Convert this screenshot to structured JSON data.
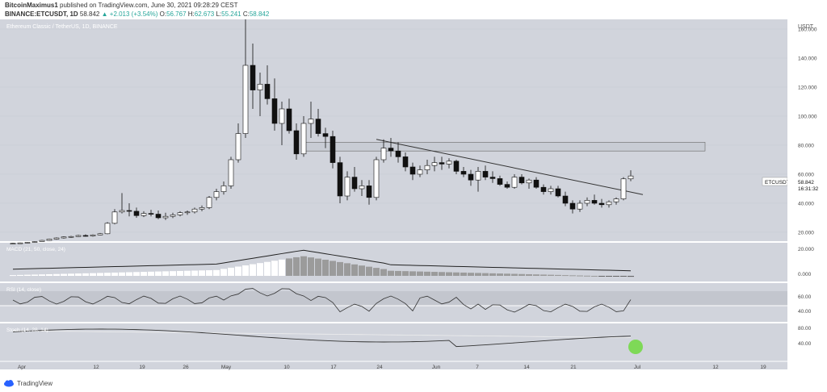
{
  "header": {
    "author": "BitcoinMaximus1",
    "published_text": "published on TradingView.com, June 30, 2021 09:28:29 CEST",
    "symbol_line": "BINANCE:ETCUSDT, 1D",
    "price": "58.842",
    "change": "+2.013 (+3.54%)",
    "o": "56.767",
    "h": "62.673",
    "l": "55.241",
    "c": "58.842"
  },
  "chart_data": {
    "type": "candlestick",
    "title": "Ethereum Classic / TetherUS, 1D, BINANCE",
    "currency": "USDT",
    "y_ticks": [
      "160.000",
      "140.000",
      "120.000",
      "100.000",
      "80.000",
      "60.000",
      "40.000",
      "20.000"
    ],
    "x_ticks": [
      "Apr",
      "12",
      "19",
      "26",
      "May",
      "10",
      "17",
      "24",
      "Jun",
      "7",
      "14",
      "21",
      "Jul",
      "12",
      "19"
    ],
    "last_price_label": {
      "symbol": "ETCUSDT",
      "value": "58.842",
      "countdown": "16:31:32"
    },
    "candles": [
      [
        12.2,
        12.8,
        11.6,
        12.4
      ],
      [
        12.4,
        12.9,
        12.0,
        12.7
      ],
      [
        12.7,
        13.3,
        12.4,
        13.1
      ],
      [
        13.1,
        13.9,
        12.9,
        13.6
      ],
      [
        13.6,
        14.8,
        13.4,
        14.4
      ],
      [
        14.4,
        15.6,
        14.1,
        15.3
      ],
      [
        15.3,
        16.5,
        14.9,
        16.1
      ],
      [
        16.1,
        17.2,
        15.6,
        16.8
      ],
      [
        16.8,
        17.6,
        16.2,
        17.1
      ],
      [
        17.1,
        18.3,
        16.8,
        17.8
      ],
      [
        17.8,
        18.6,
        17.0,
        17.5
      ],
      [
        17.5,
        18.6,
        17.0,
        18.2
      ],
      [
        18.2,
        19.5,
        17.9,
        19.0
      ],
      [
        19.0,
        27.0,
        18.7,
        26.2
      ],
      [
        26.2,
        36.0,
        25.5,
        34.0
      ],
      [
        34.0,
        47.0,
        33.0,
        35.0
      ],
      [
        35.0,
        40.0,
        31.0,
        34.5
      ],
      [
        34.5,
        37.0,
        30.0,
        31.5
      ],
      [
        31.5,
        34.5,
        30.5,
        33.0
      ],
      [
        33.0,
        35.5,
        31.0,
        32.5
      ],
      [
        32.5,
        35.0,
        29.0,
        30.0
      ],
      [
        30.0,
        33.5,
        28.5,
        31.0
      ],
      [
        31.0,
        33.5,
        29.8,
        32.0
      ],
      [
        32.0,
        34.5,
        31.0,
        33.5
      ],
      [
        33.5,
        35.0,
        32.0,
        34.0
      ],
      [
        34.0,
        37.0,
        33.0,
        36.0
      ],
      [
        36.0,
        38.5,
        34.5,
        37.0
      ],
      [
        37.0,
        45.0,
        36.0,
        44.0
      ],
      [
        44.0,
        50.0,
        42.0,
        48.0
      ],
      [
        48.0,
        55.0,
        46.0,
        52.0
      ],
      [
        52.0,
        72.0,
        50.0,
        70.0
      ],
      [
        70.0,
        95.0,
        68.0,
        88.0
      ],
      [
        88.0,
        179.0,
        85.0,
        135.0
      ],
      [
        135.0,
        150.0,
        105.0,
        118.0
      ],
      [
        118.0,
        130.0,
        100.0,
        122.0
      ],
      [
        122.0,
        135.0,
        108.0,
        112.0
      ],
      [
        112.0,
        126.0,
        90.0,
        95.0
      ],
      [
        95.0,
        110.0,
        80.0,
        105.0
      ],
      [
        105.0,
        112.0,
        88.0,
        90.0
      ],
      [
        90.0,
        95.0,
        70.0,
        74.0
      ],
      [
        74.0,
        100.0,
        72.0,
        95.0
      ],
      [
        95.0,
        110.0,
        85.0,
        98.0
      ],
      [
        98.0,
        105.0,
        86.0,
        88.0
      ],
      [
        88.0,
        92.0,
        78.0,
        86.0
      ],
      [
        86.0,
        90.0,
        64.0,
        68.0
      ],
      [
        68.0,
        72.0,
        40.0,
        45.0
      ],
      [
        45.0,
        62.0,
        42.0,
        58.0
      ],
      [
        58.0,
        65.0,
        48.0,
        50.0
      ],
      [
        50.0,
        56.0,
        45.0,
        52.0
      ],
      [
        52.0,
        56.0,
        39.0,
        44.0
      ],
      [
        44.0,
        72.0,
        42.0,
        70.0
      ],
      [
        70.0,
        84.0,
        68.0,
        78.0
      ],
      [
        78.0,
        85.0,
        72.0,
        76.0
      ],
      [
        76.0,
        82.0,
        68.0,
        72.0
      ],
      [
        72.0,
        75.0,
        62.0,
        65.0
      ],
      [
        65.0,
        68.0,
        56.0,
        60.0
      ],
      [
        60.0,
        66.0,
        58.0,
        63.0
      ],
      [
        63.0,
        70.0,
        60.0,
        66.0
      ],
      [
        66.0,
        72.0,
        62.0,
        68.0
      ],
      [
        68.0,
        72.0,
        63.0,
        67.0
      ],
      [
        67.0,
        71.0,
        64.0,
        69.0
      ],
      [
        69.0,
        70.0,
        60.0,
        62.0
      ],
      [
        62.0,
        65.0,
        58.0,
        60.0
      ],
      [
        60.0,
        63.0,
        52.0,
        56.0
      ],
      [
        56.0,
        65.0,
        48.0,
        62.0
      ],
      [
        62.0,
        66.0,
        56.0,
        58.0
      ],
      [
        58.0,
        62.0,
        54.0,
        57.0
      ],
      [
        57.0,
        59.0,
        52.0,
        53.0
      ],
      [
        53.0,
        55.0,
        50.0,
        51.0
      ],
      [
        51.0,
        60.0,
        50.0,
        58.0
      ],
      [
        58.0,
        60.0,
        53.0,
        54.0
      ],
      [
        54.0,
        57.0,
        50.0,
        56.0
      ],
      [
        56.0,
        58.0,
        50.0,
        51.0
      ],
      [
        51.0,
        53.0,
        46.0,
        48.0
      ],
      [
        48.0,
        52.0,
        46.0,
        50.0
      ],
      [
        50.0,
        52.0,
        44.0,
        45.0
      ],
      [
        45.0,
        48.0,
        38.0,
        40.0
      ],
      [
        40.0,
        42.0,
        33.0,
        36.0
      ],
      [
        36.0,
        42.0,
        34.0,
        40.0
      ],
      [
        40.0,
        44.0,
        38.0,
        42.0
      ],
      [
        42.0,
        46.0,
        39.0,
        40.0
      ],
      [
        40.0,
        43.0,
        37.0,
        39.0
      ],
      [
        39.0,
        42.0,
        37.0,
        41.0
      ],
      [
        41.0,
        44.0,
        39.0,
        43.0
      ],
      [
        43.0,
        58.0,
        42.0,
        56.8
      ],
      [
        56.8,
        62.7,
        55.2,
        58.8
      ]
    ],
    "resistance_zone": [
      76,
      82
    ],
    "descending_trendline": [
      [
        50,
        84
      ],
      [
        86,
        46
      ]
    ],
    "indicators": [
      {
        "label": "MACD (21, 50, close, 24)",
        "y_ticks": [
          "20.000",
          "0.000"
        ]
      },
      {
        "label": "RSI (14, close)",
        "y_ticks": [
          "60.00",
          "40.00"
        ]
      },
      {
        "label": "Stoch (14, 28, 14)",
        "y_ticks": [
          "80.00",
          "40.00"
        ]
      }
    ]
  },
  "footer": {
    "brand": "TradingView"
  }
}
